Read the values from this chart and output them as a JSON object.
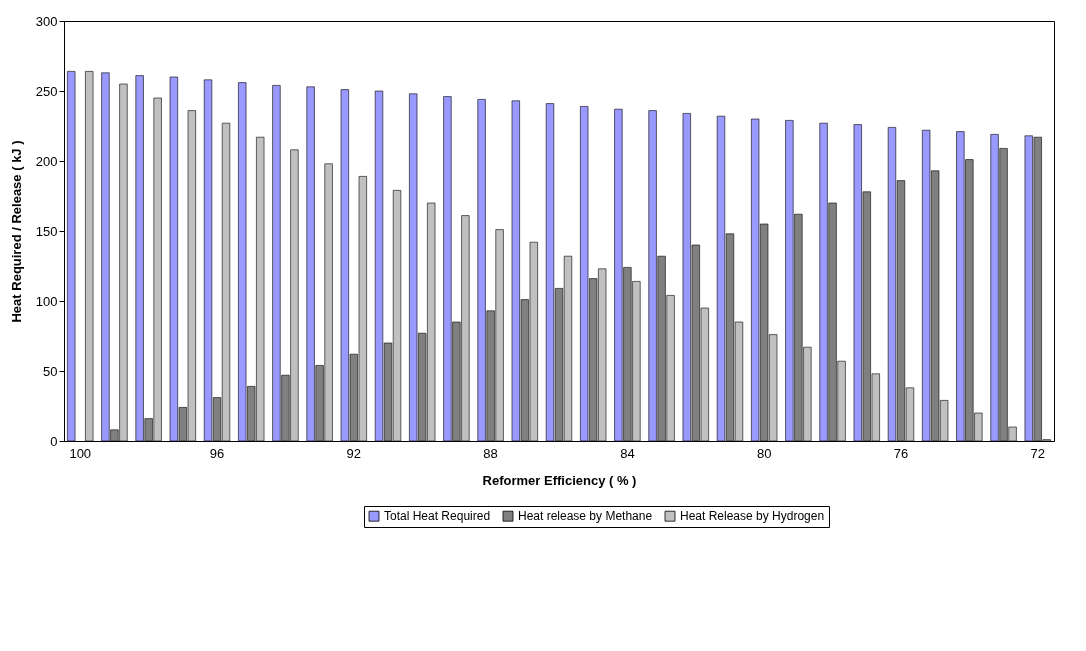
{
  "chart_data": {
    "type": "bar",
    "xlabel": "Reformer Efficiency ( % )",
    "ylabel": "Heat Required / Release  ( kJ )",
    "categories": [
      "100",
      null,
      null,
      null,
      "96",
      null,
      null,
      null,
      "92",
      null,
      null,
      null,
      "88",
      null,
      null,
      null,
      "84",
      null,
      null,
      null,
      "80",
      null,
      null,
      null,
      "76",
      null,
      null,
      null,
      "72"
    ],
    "series": [
      {
        "name": "Total Heat Required",
        "color": "#9999ff",
        "values": [
          264,
          263,
          261,
          260,
          258,
          256,
          254,
          253,
          251,
          250,
          248,
          246,
          244,
          243,
          241,
          239,
          237,
          236,
          234,
          232,
          230,
          229,
          227,
          226,
          224,
          222,
          221,
          219,
          218
        ]
      },
      {
        "name": "Heat release by Methane",
        "color": "#808080",
        "values": [
          null,
          8,
          16,
          24,
          31,
          39,
          47,
          54,
          62,
          70,
          77,
          85,
          93,
          101,
          109,
          116,
          124,
          132,
          140,
          148,
          155,
          162,
          170,
          178,
          186,
          193,
          201,
          209,
          217
        ]
      },
      {
        "name": "Heat Release by Hydrogen",
        "color": "#c0c0c0",
        "values": [
          264,
          255,
          245,
          236,
          227,
          217,
          208,
          198,
          189,
          179,
          170,
          161,
          151,
          142,
          132,
          123,
          114,
          104,
          95,
          85,
          76,
          67,
          57,
          48,
          38,
          29,
          20,
          10,
          1
        ]
      }
    ],
    "ylim": [
      0,
      300
    ],
    "yticks": [
      0,
      50,
      100,
      150,
      200,
      250,
      300
    ],
    "grid": false,
    "legend": "bottom"
  }
}
